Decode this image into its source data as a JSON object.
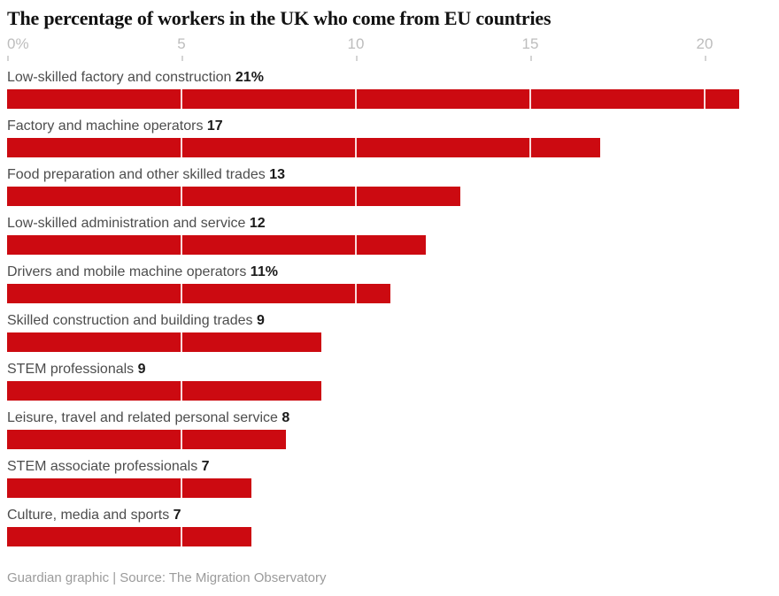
{
  "chart_data": {
    "type": "bar",
    "orientation": "horizontal",
    "title": "The percentage of workers in the UK who come from EU countries",
    "xlabel": "",
    "ylabel": "",
    "xlim": [
      0,
      21
    ],
    "bar_color": "#cc0a11",
    "gridline_style": "white dividers inside bars every 5 units",
    "x_ticks": [
      {
        "value": 0,
        "label": "0%"
      },
      {
        "value": 5,
        "label": "5"
      },
      {
        "value": 10,
        "label": "10"
      },
      {
        "value": 15,
        "label": "15"
      },
      {
        "value": 20,
        "label": "20"
      }
    ],
    "rows": [
      {
        "category": "Low-skilled factory and construction",
        "value": 21,
        "display_value": "21%"
      },
      {
        "category": "Factory and machine operators",
        "value": 17,
        "display_value": "17"
      },
      {
        "category": "Food preparation and other skilled trades",
        "value": 13,
        "display_value": "13"
      },
      {
        "category": "Low-skilled administration and service",
        "value": 12,
        "display_value": "12"
      },
      {
        "category": "Drivers and mobile machine operators",
        "value": 11,
        "display_value": "11%"
      },
      {
        "category": "Skilled construction and building trades",
        "value": 9,
        "display_value": "9"
      },
      {
        "category": "STEM professionals",
        "value": 9,
        "display_value": "9"
      },
      {
        "category": "Leisure, travel and related personal service",
        "value": 8,
        "display_value": "8"
      },
      {
        "category": "STEM associate professionals",
        "value": 7,
        "display_value": "7"
      },
      {
        "category": "Culture, media and sports",
        "value": 7,
        "display_value": "7"
      }
    ]
  },
  "footer": {
    "text": "Guardian graphic | Source: The Migration Observatory"
  },
  "colors": {
    "bar": "#cc0a11",
    "axis_label": "#bdbdbd",
    "row_label": "#4d4d4d",
    "value_label": "#1a1a1a",
    "footer_text": "#9b9b9b",
    "footer_rule": "#e2e2e2"
  }
}
